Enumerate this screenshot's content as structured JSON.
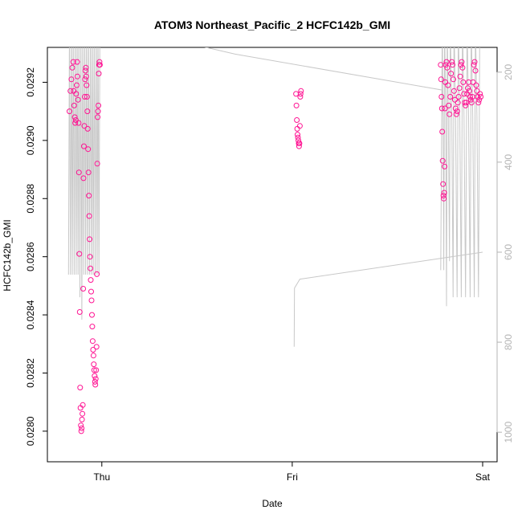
{
  "chart_data": {
    "type": "scatter",
    "title": "ATOM3 Northeast_Pacific_2 HCFC142b_GMI",
    "xlabel": "Date",
    "ylabel": "HCFC142b_GMI",
    "x_unit": "days",
    "x_range": [
      -0.21,
      2.0
    ],
    "x_ticks": [
      {
        "value": 0,
        "label": "Thu"
      },
      {
        "value": 1,
        "label": "Fri"
      },
      {
        "value": 2,
        "label": "Sat"
      }
    ],
    "ylim": [
      0.02795,
      0.02932
    ],
    "y_ticks": [
      0.028,
      0.0282,
      0.0284,
      0.0286,
      0.0288,
      0.029,
      0.0292
    ],
    "y2_range": [
      1030,
      145
    ],
    "y2_ticks": [
      200,
      400,
      600,
      800,
      1000
    ],
    "grid": false,
    "colors": {
      "points": "#ff1493",
      "line": "#c8c8c8",
      "axis": "#000000",
      "axis2": "#b4b4b4"
    },
    "series": [
      {
        "role": "points",
        "marker": "open-circle",
        "points": [
          [
            -0.17,
            0.0291
          ],
          [
            -0.165,
            0.02917
          ],
          [
            -0.16,
            0.02921
          ],
          [
            -0.155,
            0.02925
          ],
          [
            -0.15,
            0.02927
          ],
          [
            -0.148,
            0.02917
          ],
          [
            -0.145,
            0.02912
          ],
          [
            -0.142,
            0.02908
          ],
          [
            -0.14,
            0.02906
          ],
          [
            -0.137,
            0.02907
          ],
          [
            -0.135,
            0.02916
          ],
          [
            -0.132,
            0.02919
          ],
          [
            -0.13,
            0.02927
          ],
          [
            -0.128,
            0.02922
          ],
          [
            -0.125,
            0.02914
          ],
          [
            -0.122,
            0.02906
          ],
          [
            -0.12,
            0.02889
          ],
          [
            -0.118,
            0.02861
          ],
          [
            -0.116,
            0.02841
          ],
          [
            -0.114,
            0.02815
          ],
          [
            -0.112,
            0.02808
          ],
          [
            -0.11,
            0.02802
          ],
          [
            -0.108,
            0.028
          ],
          [
            -0.106,
            0.02801
          ],
          [
            -0.104,
            0.02804
          ],
          [
            -0.102,
            0.02806
          ],
          [
            -0.1,
            0.02809
          ],
          [
            -0.098,
            0.02849
          ],
          [
            -0.096,
            0.02887
          ],
          [
            -0.094,
            0.02898
          ],
          [
            -0.092,
            0.02905
          ],
          [
            -0.09,
            0.02915
          ],
          [
            -0.088,
            0.02921
          ],
          [
            -0.086,
            0.02924
          ],
          [
            -0.084,
            0.02925
          ],
          [
            -0.082,
            0.02922
          ],
          [
            -0.08,
            0.02919
          ],
          [
            -0.078,
            0.02915
          ],
          [
            -0.076,
            0.0291
          ],
          [
            -0.074,
            0.02904
          ],
          [
            -0.072,
            0.02897
          ],
          [
            -0.07,
            0.02889
          ],
          [
            -0.068,
            0.02881
          ],
          [
            -0.066,
            0.02874
          ],
          [
            -0.064,
            0.02866
          ],
          [
            -0.062,
            0.0286
          ],
          [
            -0.06,
            0.02856
          ],
          [
            -0.058,
            0.02852
          ],
          [
            -0.056,
            0.02848
          ],
          [
            -0.054,
            0.02845
          ],
          [
            -0.052,
            0.0284
          ],
          [
            -0.05,
            0.02836
          ],
          [
            -0.048,
            0.02831
          ],
          [
            -0.046,
            0.02828
          ],
          [
            -0.044,
            0.02826
          ],
          [
            -0.042,
            0.02823
          ],
          [
            -0.04,
            0.02821
          ],
          [
            -0.038,
            0.02819
          ],
          [
            -0.036,
            0.02817
          ],
          [
            -0.034,
            0.02816
          ],
          [
            -0.032,
            0.02818
          ],
          [
            -0.03,
            0.02821
          ],
          [
            -0.028,
            0.02829
          ],
          [
            -0.026,
            0.02854
          ],
          [
            -0.024,
            0.02892
          ],
          [
            -0.022,
            0.02908
          ],
          [
            -0.02,
            0.0291
          ],
          [
            -0.018,
            0.02912
          ],
          [
            -0.016,
            0.02923
          ],
          [
            -0.014,
            0.02926
          ],
          [
            -0.012,
            0.02927
          ],
          [
            -0.01,
            0.02926
          ],
          [
            1.02,
            0.02916
          ],
          [
            1.022,
            0.02912
          ],
          [
            1.024,
            0.02907
          ],
          [
            1.026,
            0.02904
          ],
          [
            1.028,
            0.02902
          ],
          [
            1.03,
            0.02901
          ],
          [
            1.032,
            0.029
          ],
          [
            1.034,
            0.02899
          ],
          [
            1.036,
            0.02898
          ],
          [
            1.038,
            0.02899
          ],
          [
            1.04,
            0.02905
          ],
          [
            1.042,
            0.02915
          ],
          [
            1.044,
            0.02916
          ],
          [
            1.046,
            0.02917
          ],
          [
            1.78,
            0.02926
          ],
          [
            1.782,
            0.02921
          ],
          [
            1.784,
            0.02915
          ],
          [
            1.786,
            0.02911
          ],
          [
            1.788,
            0.02903
          ],
          [
            1.79,
            0.02893
          ],
          [
            1.792,
            0.02885
          ],
          [
            1.794,
            0.02881
          ],
          [
            1.796,
            0.0288
          ],
          [
            1.798,
            0.02882
          ],
          [
            1.8,
            0.02891
          ],
          [
            1.802,
            0.02911
          ],
          [
            1.804,
            0.0292
          ],
          [
            1.806,
            0.02926
          ],
          [
            1.81,
            0.02927
          ],
          [
            1.814,
            0.02925
          ],
          [
            1.818,
            0.02919
          ],
          [
            1.822,
            0.02912
          ],
          [
            1.826,
            0.02909
          ],
          [
            1.83,
            0.02915
          ],
          [
            1.834,
            0.02923
          ],
          [
            1.838,
            0.02927
          ],
          [
            1.842,
            0.02926
          ],
          [
            1.846,
            0.02921
          ],
          [
            1.85,
            0.02917
          ],
          [
            1.854,
            0.02914
          ],
          [
            1.858,
            0.02911
          ],
          [
            1.862,
            0.02909
          ],
          [
            1.866,
            0.0291
          ],
          [
            1.87,
            0.02913
          ],
          [
            1.874,
            0.02915
          ],
          [
            1.878,
            0.02918
          ],
          [
            1.882,
            0.02922
          ],
          [
            1.886,
            0.02926
          ],
          [
            1.89,
            0.02927
          ],
          [
            1.894,
            0.02925
          ],
          [
            1.898,
            0.0292
          ],
          [
            1.902,
            0.02916
          ],
          [
            1.906,
            0.02913
          ],
          [
            1.91,
            0.02912
          ],
          [
            1.914,
            0.02913
          ],
          [
            1.918,
            0.02916
          ],
          [
            1.922,
            0.02918
          ],
          [
            1.926,
            0.0292
          ],
          [
            1.93,
            0.02917
          ],
          [
            1.934,
            0.02915
          ],
          [
            1.938,
            0.02914
          ],
          [
            1.942,
            0.02913
          ],
          [
            1.946,
            0.02915
          ],
          [
            1.95,
            0.0292
          ],
          [
            1.954,
            0.02926
          ],
          [
            1.958,
            0.02927
          ],
          [
            1.962,
            0.02924
          ],
          [
            1.966,
            0.02919
          ],
          [
            1.97,
            0.02917
          ],
          [
            1.974,
            0.02915
          ],
          [
            1.978,
            0.02913
          ],
          [
            1.982,
            0.02914
          ],
          [
            1.986,
            0.02916
          ],
          [
            1.99,
            0.02915
          ]
        ]
      },
      {
        "role": "line",
        "axis": "right",
        "points": [
          [
            -0.175,
            650
          ],
          [
            -0.17,
            90
          ],
          [
            -0.165,
            650
          ],
          [
            -0.16,
            90
          ],
          [
            -0.155,
            650
          ],
          [
            -0.15,
            90
          ],
          [
            -0.145,
            650
          ],
          [
            -0.14,
            90
          ],
          [
            -0.135,
            650
          ],
          [
            -0.13,
            90
          ],
          [
            -0.125,
            650
          ],
          [
            -0.12,
            90
          ],
          [
            -0.115,
            700
          ],
          [
            -0.11,
            90
          ],
          [
            -0.105,
            750
          ],
          [
            -0.1,
            90
          ],
          [
            -0.095,
            650
          ],
          [
            -0.09,
            90
          ],
          [
            -0.085,
            650
          ],
          [
            -0.08,
            90
          ],
          [
            -0.075,
            650
          ],
          [
            -0.07,
            90
          ],
          [
            -0.065,
            650
          ],
          [
            -0.06,
            90
          ],
          [
            -0.055,
            650
          ],
          [
            -0.05,
            90
          ],
          [
            -0.045,
            650
          ],
          [
            -0.04,
            90
          ],
          [
            -0.035,
            650
          ],
          [
            -0.03,
            90
          ],
          [
            -0.025,
            650
          ],
          [
            -0.02,
            90
          ],
          [
            -0.015,
            650
          ],
          [
            -0.01,
            90
          ],
          [
            0.7,
            160
          ],
          [
            1.79,
            240
          ],
          [
            1.785,
            300
          ],
          [
            1.78,
            640
          ],
          [
            1.788,
            90
          ],
          [
            1.792,
            300
          ],
          [
            1.796,
            640
          ],
          [
            1.8,
            90
          ],
          [
            1.806,
            300
          ],
          [
            1.81,
            720
          ],
          [
            1.814,
            90
          ],
          [
            1.82,
            300
          ],
          [
            1.826,
            620
          ],
          [
            1.83,
            90
          ],
          [
            1.838,
            300
          ],
          [
            1.845,
            700
          ],
          [
            1.85,
            90
          ],
          [
            1.858,
            300
          ],
          [
            1.866,
            700
          ],
          [
            1.872,
            90
          ],
          [
            1.88,
            300
          ],
          [
            1.888,
            700
          ],
          [
            1.894,
            90
          ],
          [
            1.902,
            300
          ],
          [
            1.91,
            700
          ],
          [
            1.918,
            90
          ],
          [
            1.926,
            300
          ],
          [
            1.934,
            700
          ],
          [
            1.94,
            90
          ],
          [
            1.948,
            300
          ],
          [
            1.956,
            700
          ],
          [
            1.962,
            90
          ],
          [
            1.97,
            300
          ],
          [
            1.978,
            700
          ],
          [
            1.985,
            90
          ]
        ]
      },
      {
        "role": "line",
        "axis": "right",
        "points": [
          [
            1.01,
            810
          ],
          [
            1.012,
            680
          ],
          [
            1.04,
            660
          ],
          [
            2.0,
            600
          ]
        ]
      }
    ]
  }
}
